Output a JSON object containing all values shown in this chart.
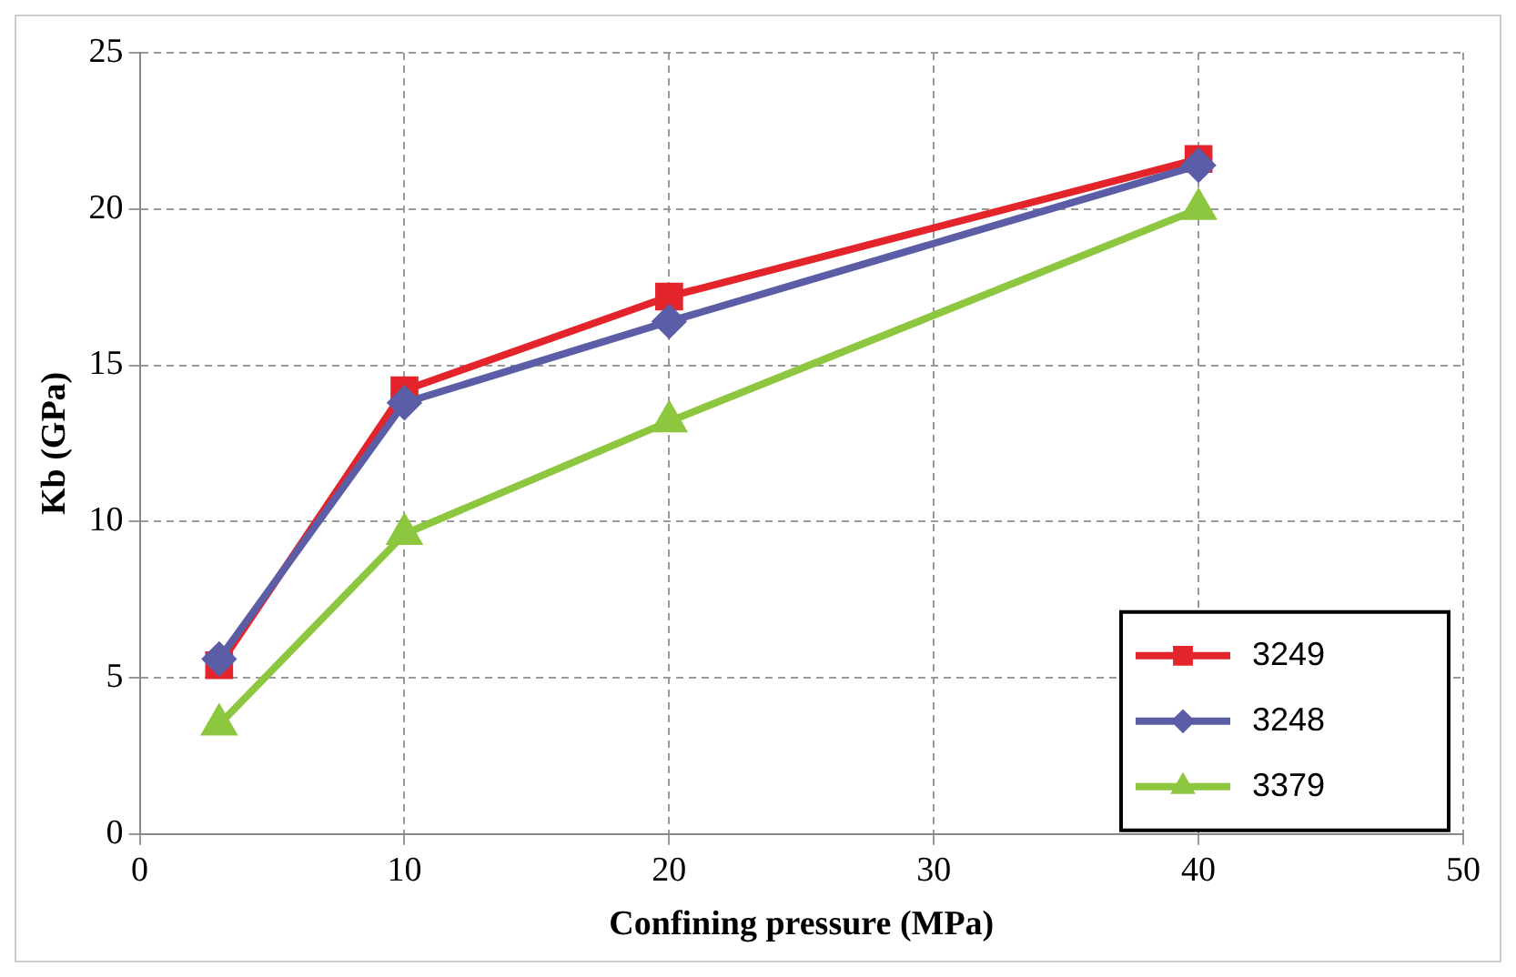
{
  "chart_data": {
    "type": "line",
    "xlabel": "Confining pressure (MPa)",
    "ylabel": "Kb (GPa)",
    "x": [
      3,
      10,
      20,
      40
    ],
    "series": [
      {
        "name": "3249",
        "color": "#e3242b",
        "marker": "square",
        "values": [
          5.4,
          14.2,
          17.2,
          21.6
        ]
      },
      {
        "name": "3248",
        "color": "#5b5ea6",
        "marker": "diamond",
        "values": [
          5.6,
          13.8,
          16.4,
          21.4
        ]
      },
      {
        "name": "3379",
        "color": "#8dc63f",
        "marker": "triangle",
        "values": [
          3.5,
          9.6,
          13.2,
          20.0
        ]
      }
    ],
    "xlim": [
      0,
      50
    ],
    "xticks": [
      0,
      10,
      20,
      30,
      40,
      50
    ],
    "ylim": [
      0,
      25
    ],
    "yticks": [
      0,
      5,
      10,
      15,
      20,
      25
    ],
    "grid": true,
    "legend": "bottom right",
    "line_style": "solid"
  }
}
